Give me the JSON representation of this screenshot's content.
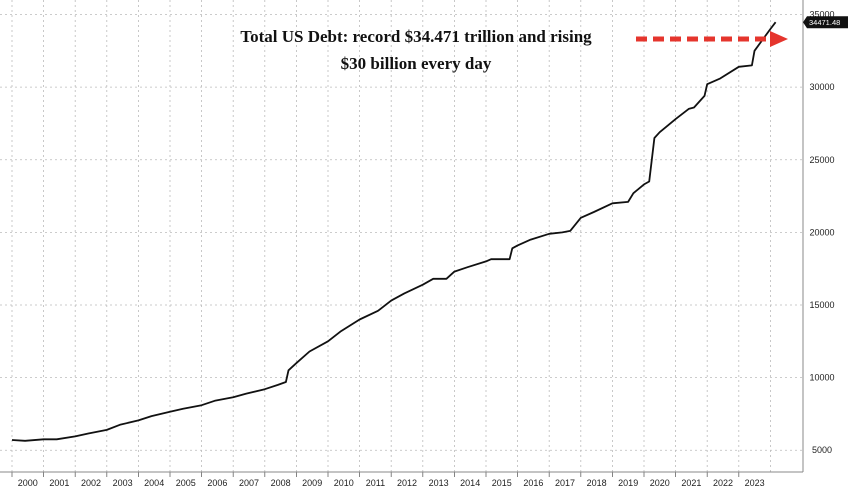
{
  "chart_data": {
    "type": "line",
    "title": "",
    "xlabel": "",
    "ylabel": "",
    "ylim": [
      3500,
      36000
    ],
    "grid": true,
    "y_ticks": [
      5000,
      10000,
      15000,
      20000,
      25000,
      30000,
      35000
    ],
    "y_tick_labels": [
      "5000",
      "10000",
      "15000",
      "20000",
      "25000",
      "30000",
      "35000"
    ],
    "x_tick_labels": [
      "2000",
      "2001",
      "2002",
      "2003",
      "2004",
      "2005",
      "2006",
      "2007",
      "2008",
      "2009",
      "2010",
      "2011",
      "2012",
      "2013",
      "2014",
      "2015",
      "2016",
      "2017",
      "2018",
      "2019",
      "2020",
      "2021",
      "2022",
      "2023"
    ],
    "last_value_label": "34471.48",
    "line_color": "#111111",
    "series": [
      {
        "x": [
          "2000-01-01",
          "2000-06-01",
          "2001-01-01",
          "2001-06-01",
          "2002-01-01",
          "2002-06-01",
          "2003-01-01",
          "2003-06-01",
          "2004-01-01",
          "2004-06-01",
          "2005-01-01",
          "2005-06-01",
          "2006-01-01",
          "2006-06-01",
          "2007-01-01",
          "2007-06-01",
          "2008-01-01",
          "2008-06-01",
          "2008-09-01",
          "2008-10-01",
          "2009-01-01",
          "2009-06-01",
          "2010-01-01",
          "2010-06-01",
          "2011-01-01",
          "2011-08-01",
          "2012-01-01",
          "2012-06-01",
          "2013-01-01",
          "2013-05-01",
          "2013-10-01",
          "2014-01-01",
          "2014-06-01",
          "2015-01-01",
          "2015-03-01",
          "2015-10-01",
          "2015-11-01",
          "2016-01-01",
          "2016-06-01",
          "2017-01-01",
          "2017-06-01",
          "2017-09-01",
          "2018-01-01",
          "2018-06-01",
          "2019-01-01",
          "2019-07-01",
          "2019-09-01",
          "2020-01-01",
          "2020-03-01",
          "2020-05-01",
          "2020-07-01",
          "2021-01-01",
          "2021-06-01",
          "2021-08-01",
          "2021-12-01",
          "2022-01-01",
          "2022-06-01",
          "2023-01-01",
          "2023-06-01",
          "2023-07-01",
          "2024-01-01",
          "2024-03-01"
        ],
        "values": [
          5700,
          5650,
          5750,
          5750,
          5950,
          6150,
          6400,
          6750,
          7050,
          7350,
          7650,
          7850,
          8100,
          8400,
          8650,
          8900,
          9200,
          9500,
          9700,
          10500,
          11000,
          11800,
          12500,
          13200,
          14000,
          14600,
          15300,
          15800,
          16400,
          16800,
          16800,
          17300,
          17600,
          18000,
          18150,
          18150,
          18900,
          19100,
          19500,
          19900,
          20000,
          20100,
          21000,
          21400,
          22000,
          22100,
          22700,
          23300,
          23500,
          26500,
          26900,
          27800,
          28500,
          28600,
          29400,
          30200,
          30600,
          31400,
          31500,
          32500,
          34000,
          34471
        ]
      }
    ],
    "annotation": {
      "line1": "Total US Debt: record $34.471 trillion and rising",
      "line2": "$30 billion every day",
      "arrow_color": "#e5352d"
    }
  }
}
